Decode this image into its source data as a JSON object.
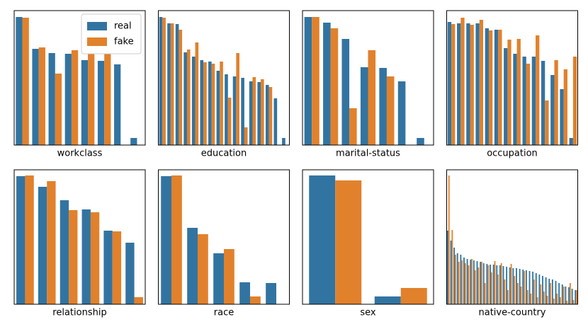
{
  "chart_data": [
    {
      "type": "bar",
      "xlabel": "workclass",
      "legend": "upper right",
      "ylim": [
        0,
        190
      ],
      "categories": [
        null,
        null,
        null,
        null,
        null,
        null,
        null,
        null
      ],
      "series": [
        {
          "name": "real",
          "color": "#3274a1",
          "values": [
            181,
            136,
            130,
            129,
            120,
            119,
            114,
            10
          ]
        },
        {
          "name": "fake",
          "color": "#e1812c",
          "values": [
            180,
            138,
            101,
            134,
            134,
            137,
            null,
            null
          ]
        }
      ]
    },
    {
      "type": "bar",
      "xlabel": "education",
      "ylim": [
        0,
        190
      ],
      "categories": [
        null,
        null,
        null,
        null,
        null,
        null,
        null,
        null,
        null,
        null,
        null,
        null,
        null,
        null,
        null,
        null
      ],
      "series": [
        {
          "color": "#3274a1",
          "values": [
            181,
            172,
            171,
            131,
            125,
            120,
            118,
            105,
            100,
            97,
            95,
            90,
            89,
            85,
            66,
            10
          ]
        },
        {
          "color": "#e1812c",
          "values": [
            180,
            172,
            163,
            135,
            145,
            117,
            115,
            118,
            67,
            130,
            25,
            96,
            93,
            82,
            null,
            null
          ]
        }
      ]
    },
    {
      "type": "bar",
      "xlabel": "marital-status",
      "ylim": [
        0,
        190
      ],
      "categories": [
        null,
        null,
        null,
        null,
        null,
        null,
        null
      ],
      "series": [
        {
          "color": "#3274a1",
          "values": [
            181,
            173,
            150,
            110,
            109,
            90,
            10
          ]
        },
        {
          "color": "#e1812c",
          "values": [
            181,
            165,
            52,
            134,
            97,
            null,
            null
          ]
        }
      ]
    },
    {
      "type": "bar",
      "xlabel": "occupation",
      "ylim": [
        0,
        190
      ],
      "categories": [
        null,
        null,
        null,
        null,
        null,
        null,
        null,
        null,
        null,
        null,
        null,
        null,
        null,
        null
      ],
      "series": [
        {
          "color": "#3274a1",
          "values": [
            174,
            172,
            172,
            172,
            165,
            163,
            137,
            129,
            125,
            125,
            119,
            99,
            79,
            10
          ]
        },
        {
          "color": "#e1812c",
          "values": [
            171,
            180,
            170,
            177,
            162,
            163,
            149,
            150,
            115,
            155,
            63,
            120,
            107,
            125
          ]
        }
      ]
    },
    {
      "type": "bar",
      "xlabel": "relationship",
      "ylim": [
        0,
        190
      ],
      "categories": [
        null,
        null,
        null,
        null,
        null,
        null
      ],
      "series": [
        {
          "color": "#3274a1",
          "values": [
            181,
            166,
            147,
            134,
            104,
            87
          ]
        },
        {
          "color": "#e1812c",
          "values": [
            182,
            174,
            133,
            130,
            103,
            10
          ]
        }
      ]
    },
    {
      "type": "bar",
      "xlabel": "race",
      "ylim": [
        0,
        190
      ],
      "categories": [
        null,
        null,
        null,
        null,
        null
      ],
      "series": [
        {
          "color": "#3274a1",
          "values": [
            181,
            108,
            72,
            31,
            30
          ]
        },
        {
          "color": "#e1812c",
          "values": [
            182,
            99,
            78,
            11,
            null
          ]
        }
      ]
    },
    {
      "type": "bar",
      "xlabel": "sex",
      "ylim": [
        0,
        190
      ],
      "categories": [
        null,
        null
      ],
      "series": [
        {
          "color": "#3274a1",
          "values": [
            182,
            11
          ]
        },
        {
          "color": "#e1812c",
          "values": [
            175,
            23
          ]
        }
      ]
    },
    {
      "type": "bar",
      "xlabel": "native-country",
      "ylim": [
        0,
        190
      ],
      "categories": [
        null,
        null,
        null,
        null,
        null,
        null,
        null,
        null,
        null,
        null,
        null,
        null,
        null,
        null,
        null,
        null,
        null,
        null,
        null,
        null,
        null,
        null,
        null,
        null,
        null,
        null,
        null,
        null,
        null,
        null,
        null,
        null,
        null,
        null,
        null,
        null,
        null,
        null,
        null,
        null
      ],
      "series": [
        {
          "color": "#3274a1",
          "values": [
            104,
            90,
            80,
            72,
            70,
            66,
            64,
            63,
            62,
            61,
            60,
            58,
            57,
            56,
            56,
            55,
            55,
            54,
            53,
            52,
            51,
            51,
            50,
            49,
            48,
            47,
            46,
            44,
            42,
            40,
            38,
            36,
            35,
            33,
            30,
            28,
            25,
            24,
            22,
            20
          ]
        },
        {
          "color": "#e1812c",
          "values": [
            182,
            105,
            70,
            60,
            62,
            58,
            55,
            64,
            48,
            52,
            60,
            30,
            55,
            45,
            61,
            42,
            58,
            35,
            20,
            57,
            40,
            30,
            25,
            47,
            20,
            15,
            35,
            10,
            28,
            18,
            12,
            30,
            8,
            15,
            10,
            25,
            5,
            30,
            6,
            20
          ]
        }
      ]
    }
  ]
}
